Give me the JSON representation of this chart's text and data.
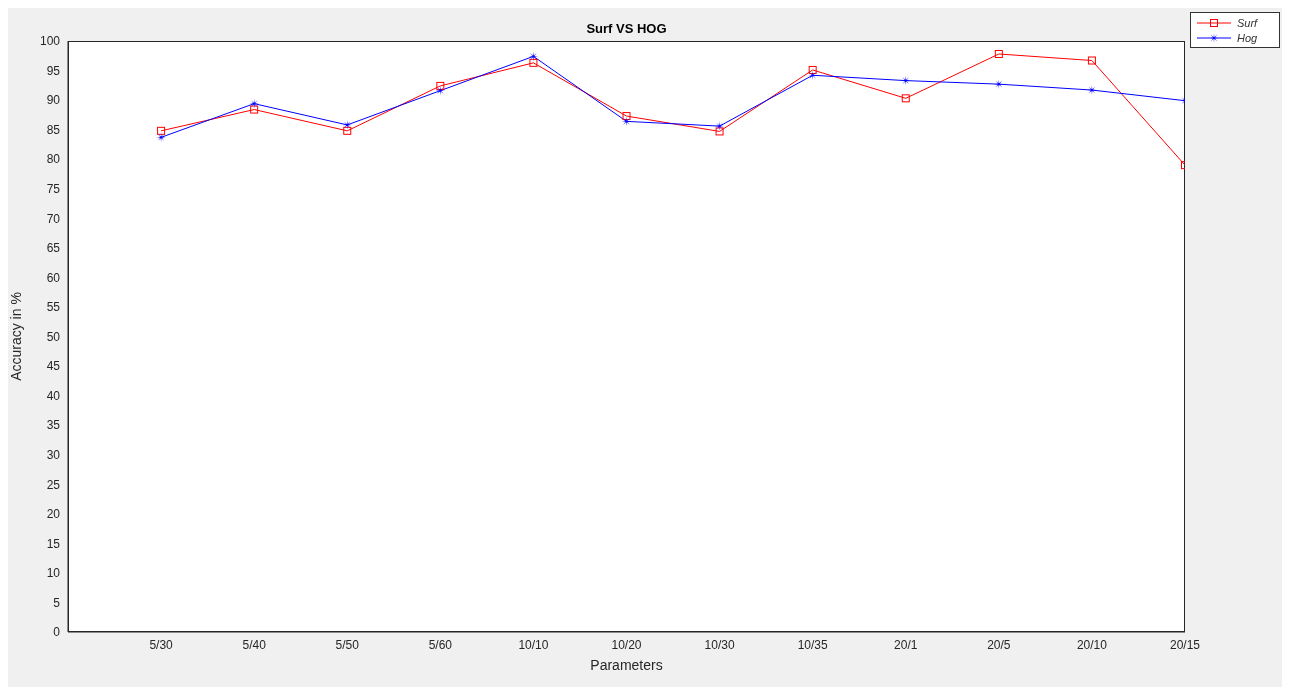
{
  "chart_data": {
    "type": "line",
    "title": "Surf VS HOG",
    "xlabel": "Parameters",
    "ylabel": "Accuracy in %",
    "categories": [
      null,
      "5/30",
      "5/40",
      "5/50",
      "5/60",
      "10/10",
      "10/20",
      "10/30",
      "10/35",
      "20/1",
      "20/5",
      "20/10",
      "20/15"
    ],
    "series": [
      {
        "name": "Surf",
        "color": "#ff0000",
        "marker": "square",
        "values": [
          null,
          84.8,
          88.4,
          84.8,
          92.4,
          96.3,
          87.3,
          84.7,
          95.1,
          90.3,
          97.8,
          96.7,
          79.0
        ]
      },
      {
        "name": "Hog",
        "color": "#0000ff",
        "marker": "star",
        "values": [
          null,
          83.7,
          89.4,
          85.8,
          91.6,
          97.4,
          86.4,
          85.6,
          94.2,
          93.3,
          92.7,
          91.7,
          89.9
        ]
      }
    ],
    "ylim": [
      0,
      100
    ],
    "yticks": [
      0,
      5,
      10,
      15,
      20,
      25,
      30,
      35,
      40,
      45,
      50,
      55,
      60,
      65,
      70,
      75,
      80,
      85,
      90,
      95,
      100
    ],
    "grid": false,
    "legend": "top right",
    "line_style": "solid"
  }
}
